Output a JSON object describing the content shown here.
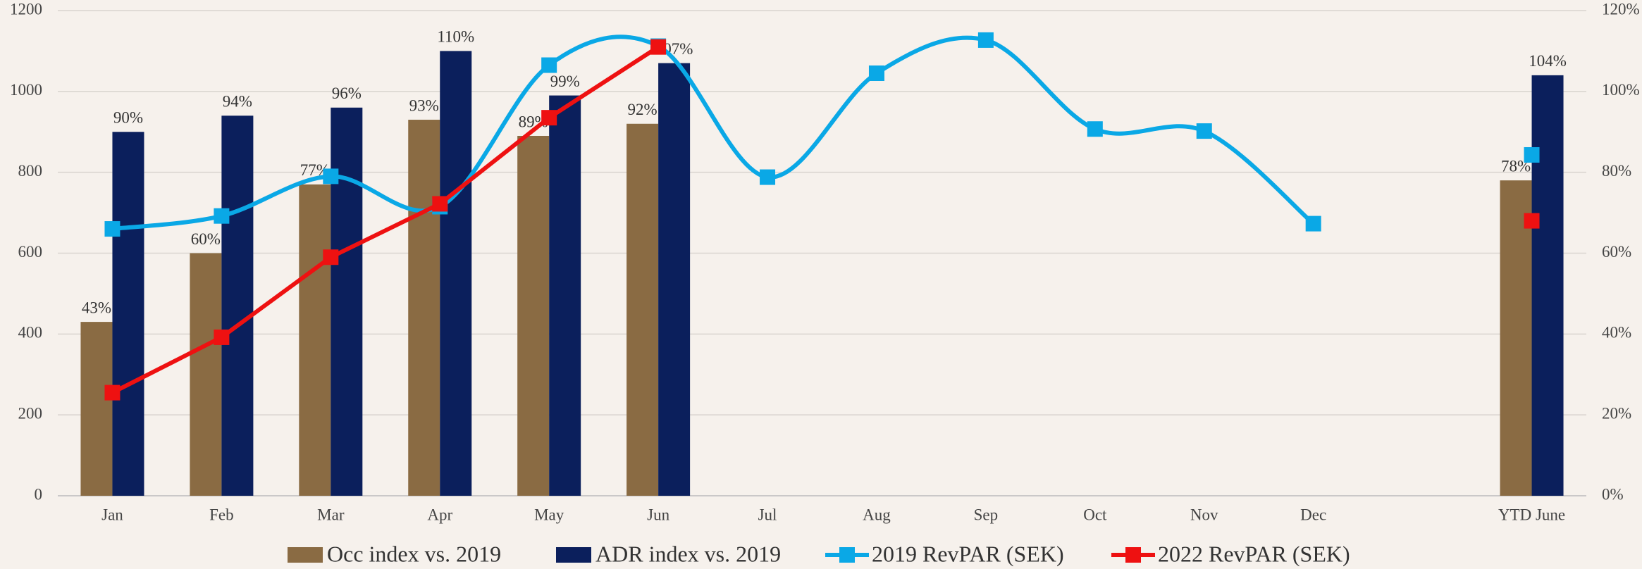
{
  "chart_data": {
    "type": "bar-line",
    "categories": [
      "Jan",
      "Feb",
      "Mar",
      "Apr",
      "May",
      "Jun",
      "Jul",
      "Aug",
      "Sep",
      "Oct",
      "Nov",
      "Dec",
      null,
      "YTD June"
    ],
    "series": [
      {
        "name": "Occ index vs. 2019",
        "type": "bar",
        "axis": "y2",
        "color": "#8a6b43",
        "values": [
          43,
          60,
          77,
          93,
          89,
          92,
          null,
          null,
          null,
          null,
          null,
          null,
          null,
          78
        ],
        "value_labels": [
          "43%",
          "60%",
          "77%",
          "93%",
          "89%",
          "92%",
          null,
          null,
          null,
          null,
          null,
          null,
          null,
          "78%"
        ]
      },
      {
        "name": "ADR index vs. 2019",
        "type": "bar",
        "axis": "y2",
        "color": "#0b1f5c",
        "values": [
          90,
          94,
          96,
          110,
          99,
          107,
          null,
          null,
          null,
          null,
          null,
          null,
          null,
          104
        ],
        "value_labels": [
          "90%",
          "94%",
          "96%",
          "110%",
          "99%",
          "107%",
          null,
          null,
          null,
          null,
          null,
          null,
          null,
          "104%"
        ]
      },
      {
        "name": "2019 RevPAR (SEK)",
        "type": "line",
        "smooth": true,
        "color": "#0aa8e6",
        "values": [
          660,
          692,
          790,
          715,
          1065,
          1112,
          788,
          1045,
          1127,
          907,
          902,
          673,
          null,
          843
        ]
      },
      {
        "name": "2022 RevPAR (SEK)",
        "type": "line",
        "smooth": false,
        "color": "#ee1111",
        "values": [
          255,
          392,
          590,
          722,
          935,
          1110,
          null,
          null,
          null,
          null,
          null,
          null,
          null,
          680
        ]
      }
    ],
    "ylim": [
      0,
      1200
    ],
    "yticks": [
      0,
      200,
      400,
      600,
      800,
      1000,
      1200
    ],
    "y2lim": [
      0,
      120
    ],
    "y2ticks": [
      {
        "value": 0,
        "label": "0%"
      },
      {
        "value": 20,
        "label": "20%"
      },
      {
        "value": 40,
        "label": "40%"
      },
      {
        "value": 60,
        "label": "60%"
      },
      {
        "value": 80,
        "label": "80%"
      },
      {
        "value": 100,
        "label": "100%"
      },
      {
        "value": 120,
        "label": "120%"
      }
    ],
    "grid": true,
    "legend": "bottom"
  }
}
